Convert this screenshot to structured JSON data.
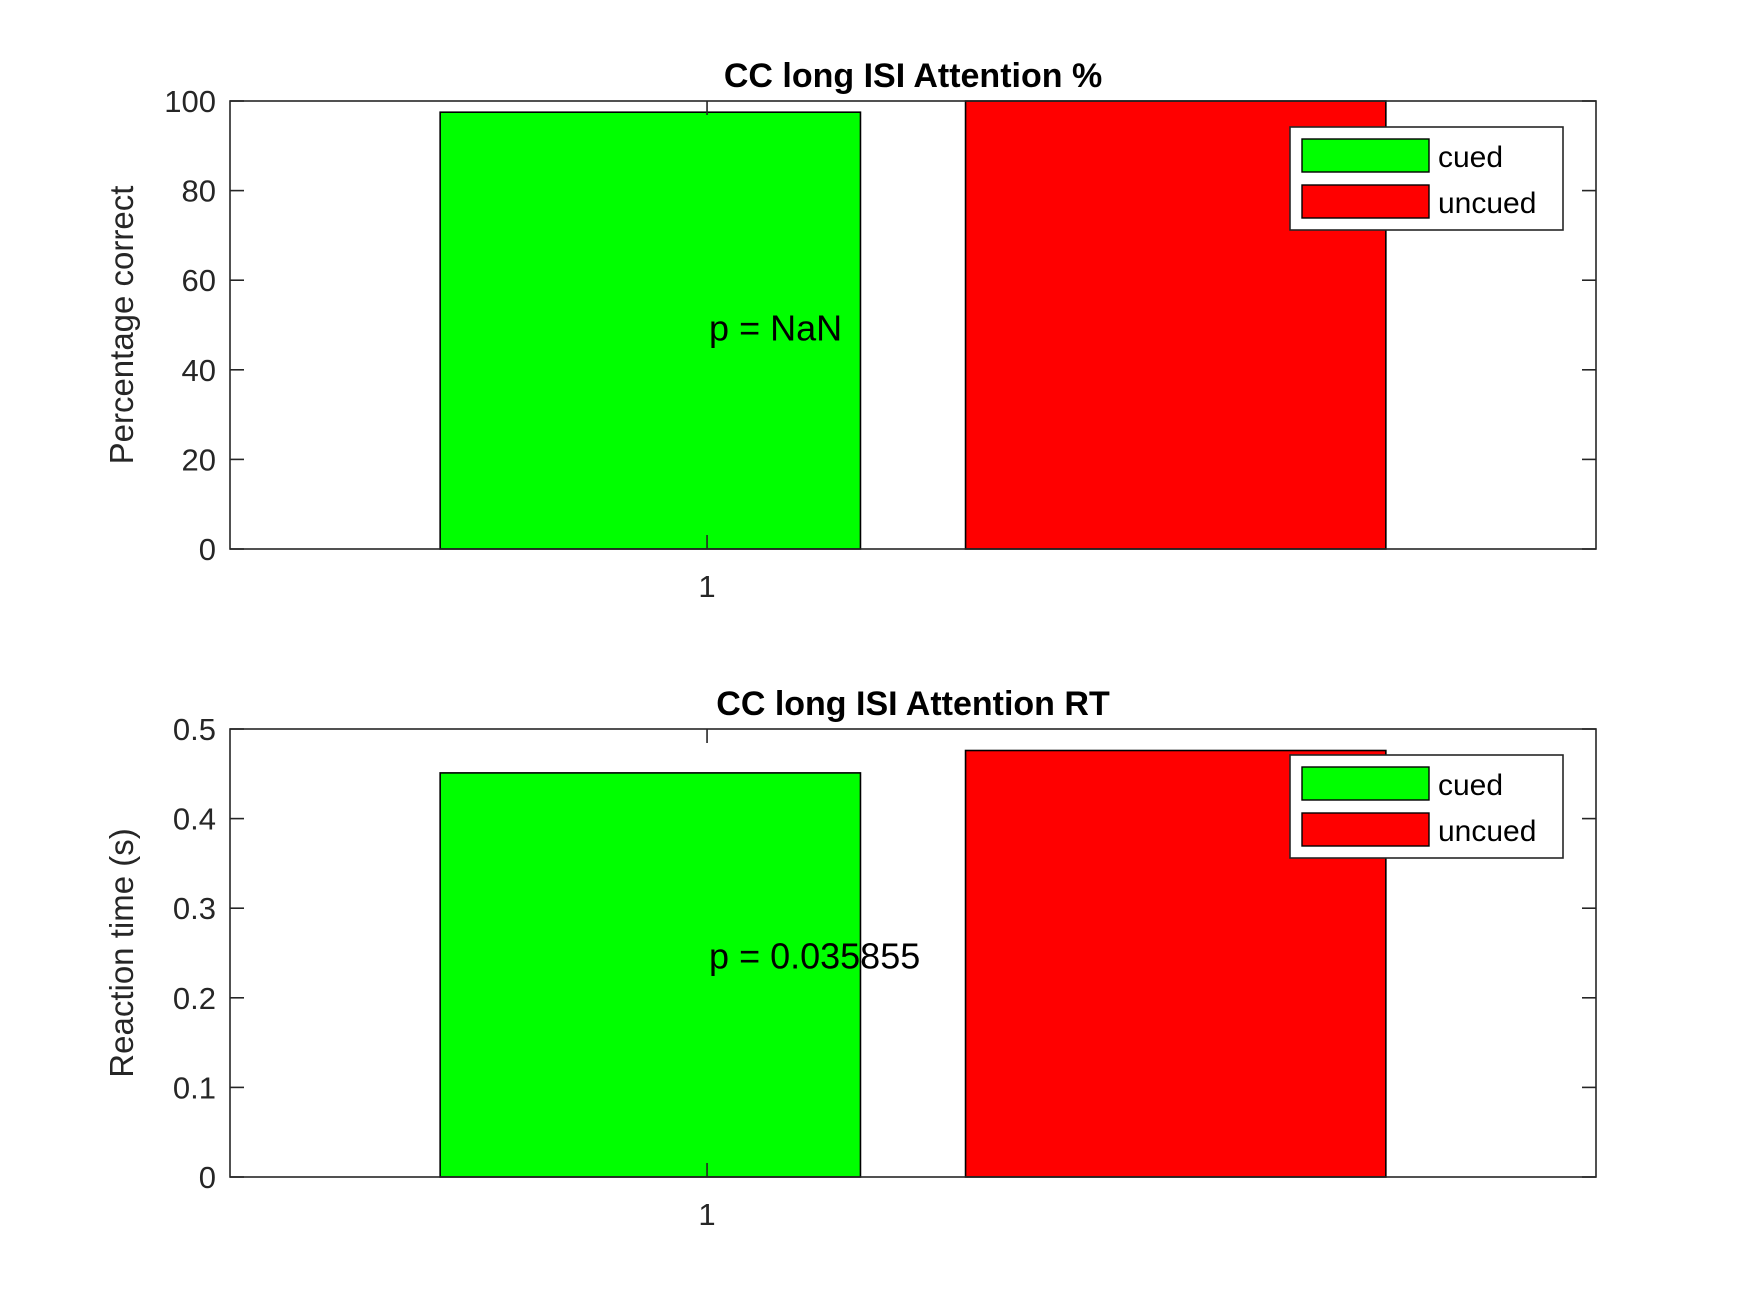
{
  "chart_data": [
    {
      "type": "bar",
      "title": "CC long ISI Attention %",
      "xlabel": "",
      "ylabel": "Percentage correct",
      "categories": [
        "1"
      ],
      "ylim": [
        0,
        100
      ],
      "yticks": [
        "0",
        "20",
        "40",
        "60",
        "80",
        "100"
      ],
      "series": [
        {
          "name": "cued",
          "values": [
            97.5
          ],
          "color": "#00ff00"
        },
        {
          "name": "uncued",
          "values": [
            100
          ],
          "color": "#ff0000"
        }
      ],
      "annotation": "p = NaN",
      "legend": "top-right",
      "grid": false
    },
    {
      "type": "bar",
      "title": "CC long ISI Attention RT",
      "xlabel": "",
      "ylabel": "Reaction time (s)",
      "categories": [
        "1"
      ],
      "ylim": [
        0,
        0.5
      ],
      "yticks": [
        "0",
        "0.1",
        "0.2",
        "0.3",
        "0.4",
        "0.5"
      ],
      "series": [
        {
          "name": "cued",
          "values": [
            0.451
          ],
          "color": "#00ff00"
        },
        {
          "name": "uncued",
          "values": [
            0.476
          ],
          "color": "#ff0000"
        }
      ],
      "annotation": "p = 0.035855",
      "legend": "top-right",
      "grid": false
    }
  ]
}
